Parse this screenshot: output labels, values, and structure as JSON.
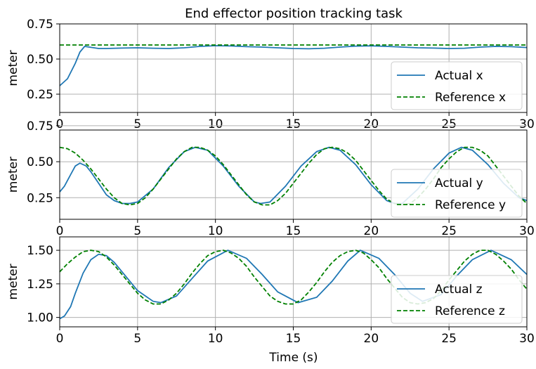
{
  "chart_data": [
    {
      "type": "line",
      "title": "End effector position tracking task",
      "xlabel": "",
      "ylabel": "meter",
      "xlim": [
        0,
        30
      ],
      "ylim": [
        0.12,
        0.75
      ],
      "xticks": [
        "0",
        "5",
        "10",
        "15",
        "20",
        "25",
        "30"
      ],
      "yticks": [
        "0.25",
        "0.50",
        "0.75"
      ],
      "grid": true,
      "legend_position": "lower-right",
      "series": [
        {
          "name": "Actual x",
          "color": "#1f77b4",
          "style": "solid",
          "x": [
            0,
            0.5,
            1.0,
            1.3,
            1.6,
            1.9,
            2.5,
            3,
            4,
            5,
            6,
            7,
            8,
            9,
            10,
            11,
            12,
            13,
            14,
            15,
            16,
            17,
            18,
            19,
            20,
            21,
            22,
            23,
            24,
            25,
            26,
            27,
            28,
            29,
            30
          ],
          "values": [
            0.31,
            0.36,
            0.47,
            0.55,
            0.59,
            0.585,
            0.575,
            0.575,
            0.578,
            0.58,
            0.577,
            0.575,
            0.58,
            0.59,
            0.595,
            0.593,
            0.588,
            0.585,
            0.58,
            0.575,
            0.573,
            0.577,
            0.585,
            0.592,
            0.594,
            0.59,
            0.585,
            0.58,
            0.578,
            0.575,
            0.577,
            0.585,
            0.59,
            0.588,
            0.582
          ]
        },
        {
          "name": "Reference x",
          "color": "#008000",
          "style": "dashed",
          "x": [
            0,
            30
          ],
          "values": [
            0.6,
            0.6
          ]
        }
      ]
    },
    {
      "type": "line",
      "title": "",
      "xlabel": "",
      "ylabel": "meter",
      "xlim": [
        0,
        30
      ],
      "ylim": [
        0.1,
        0.72
      ],
      "xticks": [
        "0",
        "5",
        "10",
        "15",
        "20",
        "25",
        "30"
      ],
      "yticks": [
        "0.25",
        "0.50",
        "0.75"
      ],
      "grid": true,
      "legend_position": "lower-right",
      "series": [
        {
          "name": "Actual y",
          "color": "#1f77b4",
          "style": "solid",
          "x": [
            0,
            0.3,
            0.7,
            1.0,
            1.3,
            1.7,
            2.0,
            2.5,
            3.0,
            3.5,
            4.0,
            4.5,
            5.0,
            6.0,
            7.0,
            8.0,
            8.7,
            9.5,
            10.5,
            11.5,
            12.5,
            12.9,
            13.5,
            14.5,
            15.5,
            16.5,
            17.3,
            18,
            19,
            20,
            21,
            21.5,
            22,
            23,
            24,
            25,
            25.8,
            26.5,
            27.5,
            28.5,
            29.5,
            30
          ],
          "values": [
            0.29,
            0.33,
            0.41,
            0.47,
            0.49,
            0.47,
            0.43,
            0.35,
            0.27,
            0.23,
            0.21,
            0.21,
            0.22,
            0.31,
            0.46,
            0.57,
            0.6,
            0.58,
            0.47,
            0.33,
            0.22,
            0.21,
            0.22,
            0.33,
            0.47,
            0.57,
            0.6,
            0.58,
            0.48,
            0.34,
            0.23,
            0.21,
            0.21,
            0.31,
            0.45,
            0.56,
            0.6,
            0.58,
            0.48,
            0.35,
            0.25,
            0.23
          ]
        },
        {
          "name": "Reference y",
          "color": "#008000",
          "style": "dashed",
          "x": [
            0,
            0.5,
            1,
            1.5,
            2,
            2.5,
            3,
            3.5,
            4,
            4.5,
            5,
            5.5,
            6,
            6.5,
            7,
            7.5,
            8,
            8.5,
            9,
            9.5,
            10,
            10.5,
            11,
            11.5,
            12,
            12.5,
            13,
            13.5,
            14,
            14.5,
            15,
            15.5,
            16,
            16.5,
            17,
            17.5,
            18,
            18.5,
            19,
            19.5,
            20,
            20.5,
            21,
            21.5,
            22,
            22.5,
            23,
            23.5,
            24,
            24.5,
            25,
            25.5,
            26,
            26.5,
            27,
            27.5,
            28,
            28.5,
            29,
            29.5,
            30
          ],
          "values": [
            0.6,
            0.59,
            0.56,
            0.51,
            0.45,
            0.38,
            0.31,
            0.25,
            0.21,
            0.2,
            0.21,
            0.25,
            0.31,
            0.38,
            0.45,
            0.52,
            0.57,
            0.6,
            0.6,
            0.58,
            0.54,
            0.48,
            0.41,
            0.34,
            0.27,
            0.22,
            0.2,
            0.2,
            0.23,
            0.28,
            0.35,
            0.42,
            0.49,
            0.55,
            0.59,
            0.6,
            0.59,
            0.56,
            0.51,
            0.44,
            0.37,
            0.3,
            0.24,
            0.21,
            0.2,
            0.21,
            0.25,
            0.31,
            0.38,
            0.46,
            0.52,
            0.57,
            0.6,
            0.6,
            0.58,
            0.54,
            0.47,
            0.4,
            0.33,
            0.26,
            0.21
          ]
        }
      ]
    },
    {
      "type": "line",
      "title": "",
      "xlabel": "Time (s)",
      "ylabel": "meter",
      "xlim": [
        0,
        30
      ],
      "ylim": [
        0.93,
        1.6
      ],
      "xticks": [
        "0",
        "5",
        "10",
        "15",
        "20",
        "25",
        "30"
      ],
      "yticks": [
        "1.00",
        "1.25",
        "1.50"
      ],
      "grid": true,
      "legend_position": "lower-right",
      "series": [
        {
          "name": "Actual z",
          "color": "#1f77b4",
          "style": "solid",
          "x": [
            0,
            0.3,
            0.7,
            1.0,
            1.5,
            2.0,
            2.5,
            3.0,
            3.5,
            4,
            5,
            6,
            6.5,
            7.5,
            8.5,
            9.5,
            10.8,
            12,
            13,
            14,
            15.3,
            16.5,
            17.5,
            18.5,
            19.3,
            20.5,
            21.5,
            22.5,
            23.3,
            24.5,
            25.5,
            26.5,
            27.7,
            29,
            30
          ],
          "values": [
            0.99,
            1.01,
            1.08,
            1.18,
            1.33,
            1.43,
            1.47,
            1.46,
            1.41,
            1.34,
            1.2,
            1.12,
            1.11,
            1.16,
            1.29,
            1.42,
            1.5,
            1.44,
            1.32,
            1.19,
            1.11,
            1.15,
            1.27,
            1.42,
            1.5,
            1.44,
            1.32,
            1.18,
            1.12,
            1.17,
            1.31,
            1.43,
            1.5,
            1.43,
            1.32
          ]
        },
        {
          "name": "Reference z",
          "color": "#008000",
          "style": "dashed",
          "x": [
            0,
            0.5,
            1,
            1.5,
            2,
            2.5,
            3,
            3.5,
            4,
            4.5,
            5,
            5.5,
            6,
            6.5,
            7,
            7.5,
            8,
            8.5,
            9,
            9.5,
            10,
            10.5,
            11,
            11.5,
            12,
            12.5,
            13,
            13.5,
            14,
            14.5,
            15,
            15.5,
            16,
            16.5,
            17,
            17.5,
            18,
            18.5,
            19,
            19.5,
            20,
            20.5,
            21,
            21.5,
            22,
            22.5,
            23,
            23.5,
            24,
            24.5,
            25,
            25.5,
            26,
            26.5,
            27,
            27.5,
            28,
            28.5,
            29,
            29.5,
            30
          ],
          "values": [
            1.34,
            1.4,
            1.45,
            1.49,
            1.5,
            1.49,
            1.45,
            1.39,
            1.32,
            1.25,
            1.18,
            1.13,
            1.1,
            1.1,
            1.13,
            1.18,
            1.25,
            1.33,
            1.4,
            1.46,
            1.49,
            1.5,
            1.48,
            1.44,
            1.38,
            1.3,
            1.23,
            1.16,
            1.12,
            1.1,
            1.1,
            1.13,
            1.19,
            1.26,
            1.34,
            1.41,
            1.46,
            1.49,
            1.5,
            1.48,
            1.43,
            1.37,
            1.29,
            1.22,
            1.15,
            1.11,
            1.1,
            1.11,
            1.14,
            1.2,
            1.28,
            1.35,
            1.42,
            1.47,
            1.5,
            1.5,
            1.47,
            1.42,
            1.36,
            1.28,
            1.21
          ]
        }
      ]
    }
  ]
}
